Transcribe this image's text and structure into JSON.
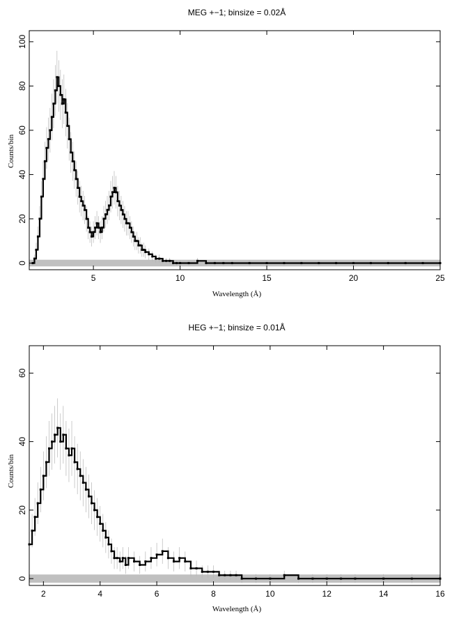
{
  "chart_data": [
    {
      "type": "line",
      "title": "MEG +−1; binsize = 0.02Å",
      "xlabel": "Wavelength (Å)",
      "ylabel": "Counts/bin",
      "xlim": [
        1.3,
        25
      ],
      "ylim": [
        -3,
        105
      ],
      "xticks": [
        5,
        10,
        15,
        20,
        25
      ],
      "yticks": [
        0,
        20,
        40,
        60,
        80,
        100
      ],
      "grid": false,
      "background_band": {
        "ymin": -1.5,
        "ymax": 1.5,
        "color": "#c0c0c0"
      },
      "series": [
        {
          "x": [
            1.5,
            1.6,
            1.7,
            1.8,
            1.9,
            2.0,
            2.1,
            2.2,
            2.3,
            2.4,
            2.5,
            2.6,
            2.7,
            2.8,
            2.9,
            3.0,
            3.1,
            3.2,
            3.3,
            3.4,
            3.5,
            3.6,
            3.7,
            3.8,
            3.9,
            4.0,
            4.1,
            4.2,
            4.3,
            4.4,
            4.5,
            4.6,
            4.7,
            4.8,
            4.9,
            5.0,
            5.1,
            5.2,
            5.3,
            5.4,
            5.5,
            5.6,
            5.7,
            5.8,
            5.9,
            6.0,
            6.1,
            6.2,
            6.3,
            6.4,
            6.5,
            6.6,
            6.7,
            6.8,
            6.9,
            7.0,
            7.1,
            7.2,
            7.3,
            7.4,
            7.5,
            7.6,
            7.7,
            7.8,
            7.9,
            8.0,
            8.2,
            8.4,
            8.6,
            8.8,
            9.0,
            9.2,
            9.4,
            9.6,
            9.8,
            10.0,
            10.5,
            11.0,
            11.5,
            12.0,
            12.5,
            13.0,
            14.0,
            15.0,
            16.0,
            17.0,
            18.0,
            19.0,
            20.0,
            21.0,
            22.0,
            23.0,
            24.0,
            25.0
          ],
          "y": [
            0,
            2,
            6,
            12,
            20,
            30,
            38,
            46,
            52,
            56,
            60,
            66,
            72,
            78,
            84,
            80,
            76,
            72,
            74,
            68,
            62,
            56,
            50,
            46,
            42,
            38,
            34,
            30,
            28,
            26,
            24,
            20,
            16,
            14,
            12,
            14,
            16,
            18,
            16,
            14,
            16,
            20,
            22,
            24,
            26,
            30,
            32,
            34,
            32,
            28,
            26,
            24,
            22,
            20,
            18,
            18,
            16,
            14,
            12,
            10,
            10,
            8,
            8,
            6,
            6,
            5,
            4,
            3,
            2,
            2,
            1,
            1,
            1,
            0,
            0,
            0,
            0,
            1,
            0,
            0,
            0,
            0,
            0,
            0,
            0,
            0,
            0,
            0,
            0,
            0,
            0,
            0,
            0,
            0
          ]
        }
      ]
    },
    {
      "type": "line",
      "title": "HEG +−1; binsize = 0.01Å",
      "xlabel": "Wavelength (Å)",
      "ylabel": "Counts/bin",
      "xlim": [
        1.5,
        16
      ],
      "ylim": [
        -2,
        68
      ],
      "xticks": [
        2,
        4,
        6,
        8,
        10,
        12,
        14,
        16
      ],
      "yticks": [
        0,
        20,
        40,
        60
      ],
      "grid": false,
      "background_band": {
        "ymin": -1.2,
        "ymax": 1.2,
        "color": "#c0c0c0"
      },
      "series": [
        {
          "x": [
            1.5,
            1.6,
            1.7,
            1.8,
            1.9,
            2.0,
            2.1,
            2.2,
            2.3,
            2.4,
            2.5,
            2.6,
            2.7,
            2.8,
            2.9,
            3.0,
            3.1,
            3.2,
            3.3,
            3.4,
            3.5,
            3.6,
            3.7,
            3.8,
            3.9,
            4.0,
            4.1,
            4.2,
            4.3,
            4.4,
            4.5,
            4.6,
            4.7,
            4.8,
            4.9,
            5.0,
            5.2,
            5.4,
            5.6,
            5.8,
            6.0,
            6.2,
            6.4,
            6.6,
            6.8,
            7.0,
            7.2,
            7.4,
            7.6,
            7.8,
            8.0,
            8.2,
            8.4,
            8.6,
            8.8,
            9.0,
            9.5,
            10.0,
            10.5,
            11.0,
            11.5,
            12.0,
            12.5,
            13.0,
            14.0,
            15.0,
            16.0
          ],
          "y": [
            10,
            14,
            18,
            22,
            26,
            30,
            34,
            38,
            40,
            42,
            44,
            40,
            42,
            38,
            36,
            38,
            34,
            32,
            30,
            28,
            26,
            24,
            22,
            20,
            18,
            16,
            14,
            12,
            10,
            8,
            6,
            6,
            5,
            6,
            4,
            6,
            5,
            4,
            5,
            6,
            7,
            8,
            6,
            5,
            6,
            5,
            3,
            3,
            2,
            2,
            2,
            1,
            1,
            1,
            1,
            0,
            0,
            0,
            1,
            0,
            0,
            0,
            0,
            0,
            0,
            0,
            0
          ]
        }
      ]
    }
  ]
}
